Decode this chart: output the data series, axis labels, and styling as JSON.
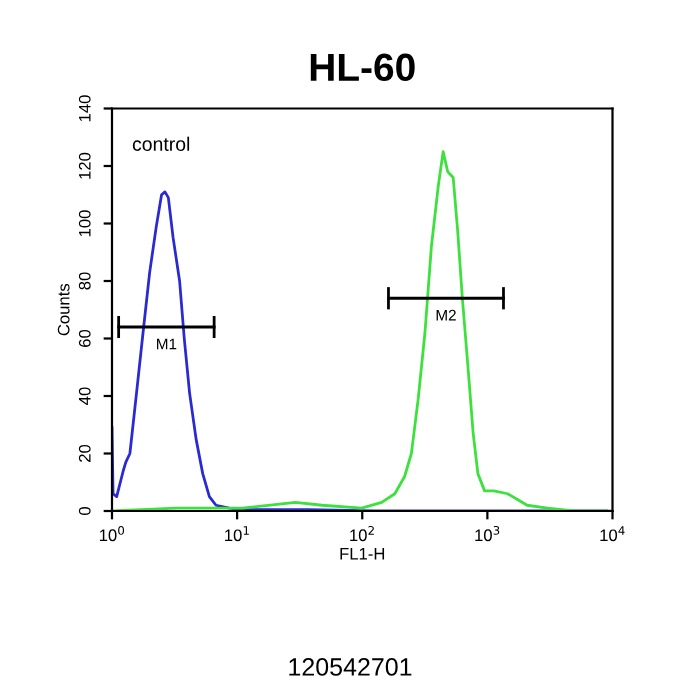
{
  "chart_data": {
    "type": "line",
    "title": "HL-60",
    "xlabel": "FL1-H",
    "ylabel": "Counts",
    "log": "x",
    "xlim": [
      1,
      10000
    ],
    "xticks": [
      {
        "value": 1,
        "label": "10$^{0}$"
      },
      {
        "value": 10,
        "label": "10$^{1}$"
      },
      {
        "value": 100,
        "label": "10$^{2}$"
      },
      {
        "value": 1000,
        "label": "10$^{3}$"
      },
      {
        "value": 10000,
        "label": "10$^{4}$"
      }
    ],
    "ylim": [
      0,
      140
    ],
    "yticks": [
      0,
      20,
      40,
      60,
      80,
      100,
      120,
      140
    ],
    "grid": false,
    "legend": false,
    "series": [
      {
        "color": "#2a2ad0",
        "x": [
          1.0,
          1.02,
          1.09,
          1.23,
          1.29,
          1.39,
          1.57,
          1.77,
          2.0,
          2.26,
          2.49,
          2.65,
          2.82,
          3.08,
          3.47,
          3.78,
          4.17,
          4.7,
          5.31,
          6.0,
          6.78,
          8.65,
          11.0,
          37,
          126,
          426,
          1450,
          9000
        ],
        "values": [
          29,
          6,
          5,
          14,
          17,
          20,
          41,
          62,
          83,
          99,
          110,
          111,
          109,
          95,
          80,
          60,
          41,
          25,
          13,
          5,
          2,
          1,
          0.5,
          0.5,
          0,
          0,
          0,
          0
        ]
      },
      {
        "color": "#3ee03e",
        "x": [
          1.0,
          3.26,
          11.0,
          29.3,
          47.8,
          99,
          143,
          182,
          218,
          247,
          280,
          317,
          357,
          405,
          443,
          482,
          533,
          580,
          631,
          700,
          770,
          840,
          950,
          1130,
          1450,
          1740,
          2080,
          3020,
          4920,
          10000
        ],
        "values": [
          0,
          1,
          1,
          3,
          2,
          1,
          3,
          6,
          12,
          20,
          39,
          62,
          92,
          113,
          125,
          118,
          116,
          97,
          74,
          50,
          27,
          13,
          7,
          7,
          6,
          4,
          2,
          1,
          0,
          0
        ]
      },
      {
        "name": "M1",
        "color": "#000000",
        "x": [
          1.13,
          6.55
        ],
        "values": [
          64,
          64
        ]
      },
      {
        "name": "M2",
        "color": "#000000",
        "x": [
          162,
          1345
        ],
        "values": [
          74,
          74
        ]
      }
    ],
    "annotations": [
      "control",
      "120542701"
    ]
  }
}
